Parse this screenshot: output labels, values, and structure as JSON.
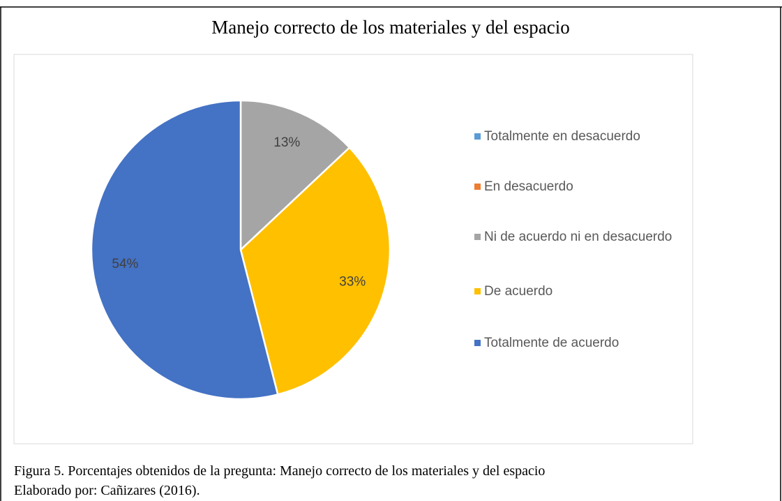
{
  "chart_data": {
    "type": "pie",
    "title": "Manejo correcto de los materiales y del espacio",
    "categories": [
      "Totalmente en desacuerdo",
      "En desacuerdo",
      "Ni de acuerdo ni en desacuerdo",
      "De acuerdo",
      "Totalmente de acuerdo"
    ],
    "values": [
      0,
      0,
      13,
      33,
      54
    ],
    "value_labels": [
      null,
      null,
      "13%",
      "33%",
      "54%"
    ],
    "colors": [
      "#5b9bd5",
      "#ed7d31",
      "#a5a5a5",
      "#ffc000",
      "#4472c4"
    ],
    "legend": "right"
  },
  "caption": [
    "Figura 5. Porcentajes obtenidos de la pregunta: Manejo correcto de los materiales y del espacio",
    "Elaborado por: Cañizares (2016)."
  ]
}
